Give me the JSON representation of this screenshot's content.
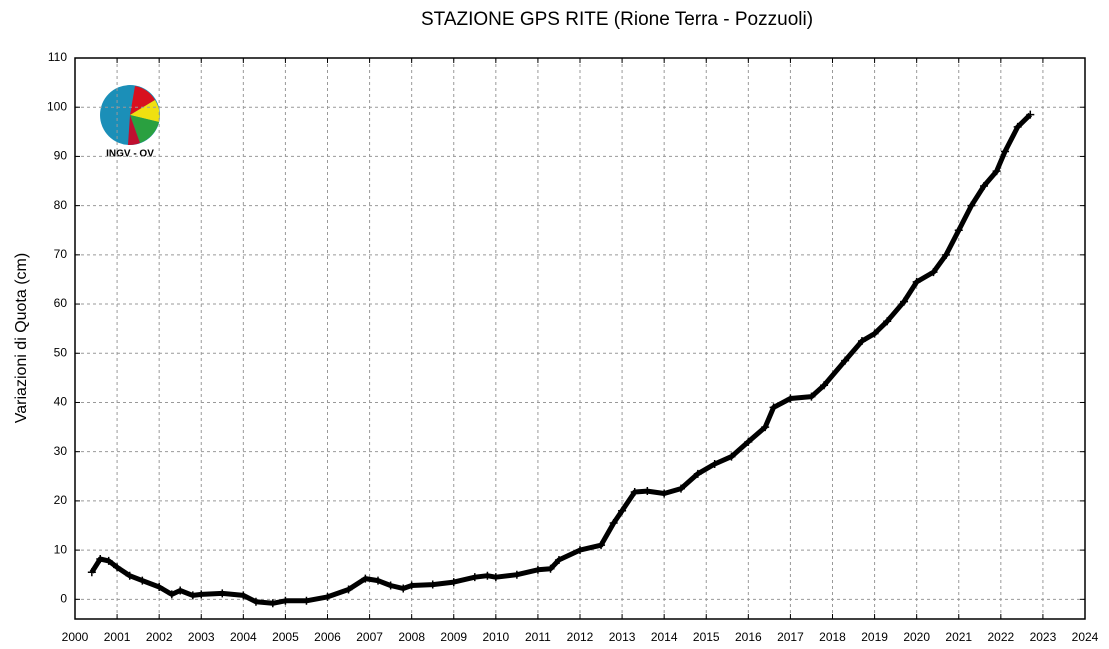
{
  "chart_data": {
    "type": "line",
    "title": "STAZIONE GPS RITE (Rione Terra - Pozzuoli)",
    "y_label": "Variazioni di Quota (cm)",
    "logo": "INGV - OV",
    "color": "#000000",
    "grid": true,
    "x": [
      2000.4,
      2000.6,
      2000.8,
      2001.0,
      2001.3,
      2001.6,
      2002.0,
      2002.3,
      2002.5,
      2002.8,
      2003.0,
      2003.5,
      2004.0,
      2004.3,
      2004.7,
      2005.0,
      2005.5,
      2006.0,
      2006.5,
      2006.9,
      2007.2,
      2007.5,
      2007.8,
      2008.0,
      2008.5,
      2009.0,
      2009.5,
      2009.8,
      2010.0,
      2010.5,
      2011.0,
      2011.3,
      2011.5,
      2012.0,
      2012.5,
      2012.8,
      2013.0,
      2013.3,
      2013.6,
      2014.0,
      2014.4,
      2014.8,
      2015.2,
      2015.6,
      2016.0,
      2016.4,
      2016.6,
      2017.0,
      2017.5,
      2017.8,
      2018.3,
      2018.7,
      2019.0,
      2019.3,
      2019.7,
      2020.0,
      2020.4,
      2020.7,
      2021.0,
      2021.3,
      2021.6,
      2021.9,
      2022.1,
      2022.4,
      2022.7
    ],
    "values": [
      5.5,
      8.2,
      7.8,
      6.5,
      4.8,
      3.8,
      2.5,
      1.0,
      1.8,
      0.8,
      1.0,
      1.2,
      0.8,
      -0.5,
      -0.8,
      -0.3,
      -0.3,
      0.5,
      2.0,
      4.2,
      3.8,
      2.8,
      2.2,
      2.8,
      3.0,
      3.5,
      4.5,
      4.8,
      4.5,
      5.0,
      6.0,
      6.2,
      8.0,
      10.0,
      11.0,
      15.5,
      18.0,
      21.8,
      22.0,
      21.5,
      22.5,
      25.5,
      27.5,
      29.0,
      32.0,
      35.0,
      39.0,
      40.8,
      41.2,
      43.5,
      48.5,
      52.5,
      54.0,
      56.5,
      60.5,
      64.5,
      66.5,
      70.0,
      75.0,
      80.0,
      84.0,
      87.0,
      91.0,
      96.0,
      98.5
    ],
    "xlim": [
      2000,
      2024
    ],
    "xticks": [
      2000,
      2001,
      2002,
      2003,
      2004,
      2005,
      2006,
      2007,
      2008,
      2009,
      2010,
      2011,
      2012,
      2013,
      2014,
      2015,
      2016,
      2017,
      2018,
      2019,
      2020,
      2021,
      2022,
      2023,
      2024
    ],
    "ylim": [
      -4,
      110
    ],
    "yticks": [
      0,
      10,
      20,
      30,
      40,
      50,
      60,
      70,
      80,
      90,
      100,
      110
    ]
  }
}
